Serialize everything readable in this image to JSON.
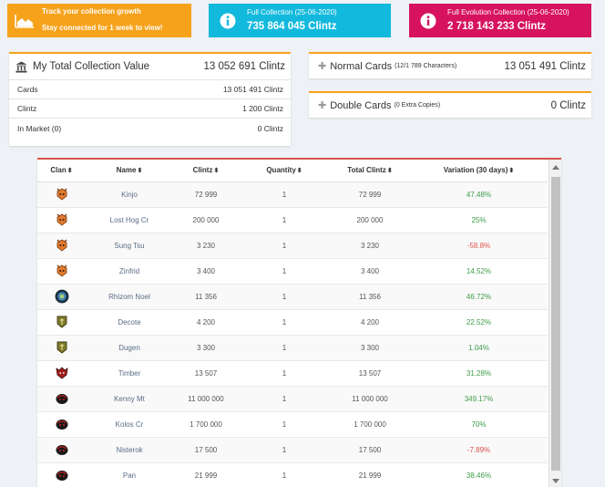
{
  "tiles": {
    "growth": {
      "line1": "Track your collection growth",
      "line2": "Stay connected for 1 week to view!"
    },
    "full": {
      "title": "Full Collection (25-06-2020)",
      "value": "735 864 045 Clintz"
    },
    "evolution": {
      "title": "Full Evolution Collection (25-06-2020)",
      "value": "2 718 143 233 Clintz"
    }
  },
  "total": {
    "title": "My Total Collection Value",
    "value": "13 052 691 Clintz",
    "rows": [
      {
        "label": "Cards",
        "value": "13 051 491 Clintz"
      },
      {
        "label": "Clintz",
        "value": "1 200 Clintz"
      },
      {
        "label": "In Market (0)",
        "value": "0 Clintz"
      }
    ]
  },
  "normal_cards": {
    "title": "Normal Cards",
    "sub": "(12/1 789 Characters)",
    "value": "13 051 491 Clintz"
  },
  "double_cards": {
    "title": "Double Cards",
    "sub": "(0 Extra Copies)",
    "value": "0 Clintz"
  },
  "table": {
    "headers": [
      "Clan",
      "Name",
      "Clintz",
      "Quantity",
      "Total Clintz",
      "Variation (30 days)"
    ],
    "rows": [
      {
        "clan": "orange",
        "name": "Kinjo",
        "clintz": "72 999",
        "qty": "1",
        "total": "72 999",
        "var": "47.48%",
        "trend": "pos"
      },
      {
        "clan": "orange",
        "name": "Lost Hog Cr",
        "clintz": "200 000",
        "qty": "1",
        "total": "200 000",
        "var": "25%",
        "trend": "pos"
      },
      {
        "clan": "orange",
        "name": "Sung Tsu",
        "clintz": "3 230",
        "qty": "1",
        "total": "3 230",
        "var": "-58.8%",
        "trend": "neg"
      },
      {
        "clan": "orange",
        "name": "Zinfrid",
        "clintz": "3 400",
        "qty": "1",
        "total": "3 400",
        "var": "14.52%",
        "trend": "pos"
      },
      {
        "clan": "blue",
        "name": "Rhizom Noel",
        "clintz": "11 356",
        "qty": "1",
        "total": "11 356",
        "var": "46.72%",
        "trend": "pos"
      },
      {
        "clan": "olive",
        "name": "Decote",
        "clintz": "4 200",
        "qty": "1",
        "total": "4 200",
        "var": "22.52%",
        "trend": "pos"
      },
      {
        "clan": "olive",
        "name": "Dugen",
        "clintz": "3 300",
        "qty": "1",
        "total": "3 300",
        "var": "1.04%",
        "trend": "pos"
      },
      {
        "clan": "red",
        "name": "Timber",
        "clintz": "13 507",
        "qty": "1",
        "total": "13 507",
        "var": "31.28%",
        "trend": "pos"
      },
      {
        "clan": "black",
        "name": "Kenny Mt",
        "clintz": "11 000 000",
        "qty": "1",
        "total": "11 000 000",
        "var": "349.17%",
        "trend": "pos"
      },
      {
        "clan": "black",
        "name": "Kolos Cr",
        "clintz": "1 700 000",
        "qty": "1",
        "total": "1 700 000",
        "var": "70%",
        "trend": "pos"
      },
      {
        "clan": "black",
        "name": "Nisterok",
        "clintz": "17 500",
        "qty": "1",
        "total": "17 500",
        "var": "-7.89%",
        "trend": "neg"
      },
      {
        "clan": "black",
        "name": "Pan",
        "clintz": "21 999",
        "qty": "1",
        "total": "21 999",
        "var": "38.46%",
        "trend": "pos"
      }
    ]
  },
  "colors": {
    "orange": "#f6a21b",
    "cyan": "#12b9dd",
    "pink": "#d7125f",
    "positive": "#3c9b47",
    "negative": "#d9534f"
  }
}
